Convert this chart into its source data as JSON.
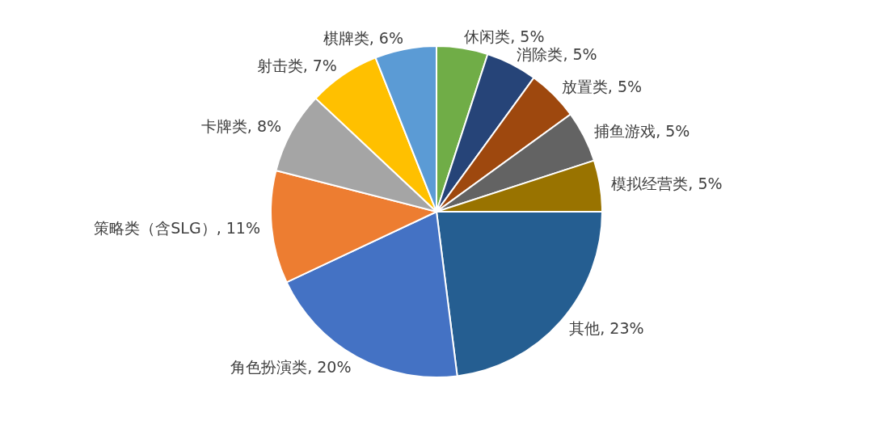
{
  "chart_data": {
    "type": "pie",
    "categories": [
      "休闲类",
      "消除类",
      "放置类",
      "捕鱼游戏",
      "模拟经营类",
      "其他",
      "角色扮演类",
      "策略类（含SLG）",
      "卡牌类",
      "射击类",
      "棋牌类"
    ],
    "values": [
      5,
      5,
      5,
      5,
      5,
      23,
      20,
      11,
      8,
      7,
      6
    ],
    "value_labels": [
      ", 5%",
      ", 5%",
      ", 5%",
      ", 5%",
      ", 5%",
      ", 23%",
      ", 20%",
      ", 11%",
      ", 8%",
      ", 7%",
      ", 6%"
    ],
    "colors": [
      "#70ad47",
      "#264478",
      "#9e480e",
      "#636363",
      "#997300",
      "#255e91",
      "#4472c4",
      "#ed7d31",
      "#a5a5a5",
      "#ffc000",
      "#5b9bd5"
    ]
  }
}
